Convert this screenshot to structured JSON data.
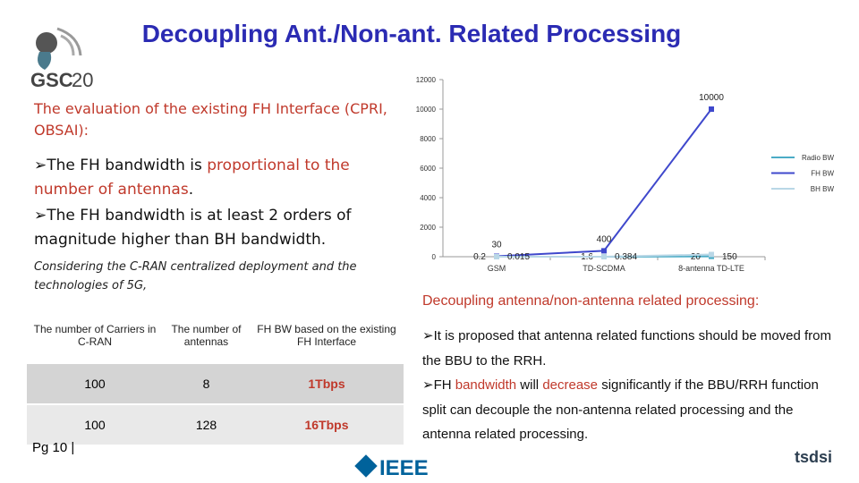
{
  "header": {
    "title": "Decoupling Ant./Non-ant. Related Processing",
    "logo_main": "GSC",
    "logo_num": "20"
  },
  "left": {
    "heading": "The evaluation of the existing FH Interface (CPRI, OBSAI):",
    "bullet1": [
      "The FH bandwidth is ",
      "proportional to the number of antennas",
      "."
    ],
    "bullet2": "The FH bandwidth is at least 2 orders of magnitude higher than BH bandwidth.",
    "note": "Considering the C-RAN centralized deployment and the technologies of 5G,"
  },
  "chart_data": {
    "type": "line",
    "categories": [
      "GSM",
      "TD-SCDMA",
      "8-antenna TD-LTE"
    ],
    "series": [
      {
        "name": "Radio BW",
        "color": "#4bacc6",
        "values": [
          0.2,
          1.6,
          20
        ]
      },
      {
        "name": "FH BW",
        "color": "#3f48cc",
        "values": [
          30,
          400,
          10000
        ]
      },
      {
        "name": "BH BW",
        "color": "#b9d7e6",
        "values": [
          0.015,
          0.384,
          150
        ]
      }
    ],
    "ylim": [
      0,
      12000
    ],
    "yticks": [
      0,
      2000,
      4000,
      6000,
      8000,
      10000,
      12000
    ],
    "grid": false,
    "legend": "right"
  },
  "table": {
    "header": [
      "The number of Carriers in C-RAN",
      "The number of antennas",
      "FH BW based on the existing FH Interface"
    ],
    "rows": [
      [
        100,
        8,
        "1Tbps"
      ],
      [
        100,
        128,
        "16Tbps"
      ]
    ]
  },
  "right": {
    "heading": "Decoupling antenna/non-antenna related processing:",
    "bullet1": "It is proposed that antenna related functions should be moved from the BBU to the RRH.",
    "bullet2": [
      "FH ",
      "bandwidth",
      " will ",
      "decrease",
      " significantly if the BBU/RRH function split can decouple the non-antenna related processing and the antenna related processing."
    ]
  },
  "footer": {
    "page": "Pg  10 |",
    "ieee": "IEEE",
    "tsdsi": "tsdsi"
  }
}
